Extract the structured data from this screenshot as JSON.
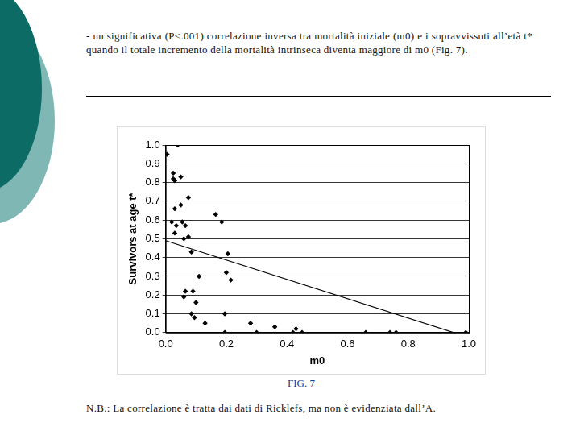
{
  "paragraph": "- un significativa (P<.001) correlazione inversa tra mortalità iniziale (m0) e i sopravvissuti all’età t* quando il totale incremento della mortalità intrinseca diventa maggiore di m0 (Fig. 7).",
  "caption": "FIG. 7",
  "note": "N.B.: La correlazione è tratta dai dati di Ricklefs, ma non è evidenziata dall’A.",
  "chart_data": {
    "type": "scatter",
    "x_label": "m0",
    "y_label": "Survivors at age t*",
    "xlim": [
      0,
      1
    ],
    "ylim": [
      0,
      1
    ],
    "xticks": [
      {
        "value": 0,
        "label": "0.0"
      },
      0.2,
      0.4,
      0.6,
      0.8,
      {
        "value": 1,
        "label": "1.0"
      }
    ],
    "yticks": [
      {
        "value": 0,
        "label": "0.0"
      },
      0.1,
      0.2,
      0.3,
      0.4,
      0.5,
      0.6,
      0.7,
      0.8,
      0.9,
      {
        "value": 1,
        "label": "1.0"
      }
    ],
    "grid": "y",
    "series": [
      {
        "type": "scatter",
        "marker": "diamond",
        "color": "#000000",
        "x": [
          0.005,
          0.04,
          0.025,
          0.025,
          0.03,
          0.05,
          0.075,
          0.03,
          0.05,
          0.02,
          0.035,
          0.055,
          0.065,
          0.03,
          0.06,
          0.075,
          0.085,
          0.165,
          0.185,
          0.205,
          0.2,
          0.215,
          0.11,
          0.065,
          0.09,
          0.06,
          0.1,
          0.085,
          0.095,
          0.13,
          0.195,
          0.195,
          0.28,
          0.3,
          0.36,
          0.42,
          0.43,
          0.45,
          0.66,
          0.74,
          0.76,
          0.99
        ],
        "values": [
          0.95,
          1.0,
          0.85,
          0.82,
          0.81,
          0.83,
          0.72,
          0.66,
          0.68,
          0.59,
          0.57,
          0.59,
          0.57,
          0.53,
          0.5,
          0.51,
          0.43,
          0.63,
          0.59,
          0.42,
          0.32,
          0.28,
          0.3,
          0.22,
          0.22,
          0.19,
          0.16,
          0.1,
          0.08,
          0.05,
          0.1,
          0.0,
          0.05,
          0.0,
          0.03,
          0.0,
          0.02,
          0.0,
          0.0,
          0.0,
          0.0,
          0.0
        ]
      },
      {
        "type": "line",
        "line_style": "solid",
        "color": "#000000",
        "x": [
          0,
          0.95
        ],
        "values": [
          0.49,
          0
        ]
      }
    ]
  }
}
